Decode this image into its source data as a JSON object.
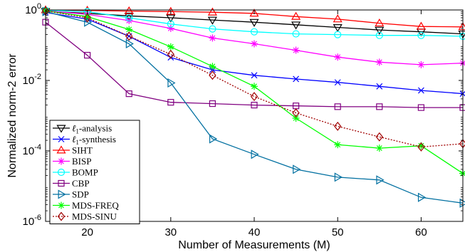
{
  "chart_data": {
    "type": "line",
    "xlabel": "Number of Measurements (M)",
    "ylabel": "Normalized norm-2 error",
    "xlim": [
      15,
      65
    ],
    "ylim": [
      1e-06,
      1
    ],
    "yscale": "log",
    "xticks": [
      20,
      30,
      40,
      50,
      60
    ],
    "xtick_labels": [
      "20",
      "30",
      "40",
      "50",
      "60"
    ],
    "yticks": [
      1e-06,
      0.0001,
      0.01,
      1
    ],
    "ytick_labels": [
      {
        "base": "10",
        "exp": "-6"
      },
      {
        "base": "10",
        "exp": "-4"
      },
      {
        "base": "10",
        "exp": "-2"
      },
      {
        "base": "10",
        "exp": "0"
      }
    ],
    "grid": false,
    "legend_position": "lower-left",
    "x": [
      15,
      20,
      25,
      30,
      35,
      40,
      45,
      50,
      55,
      60,
      65
    ],
    "series": [
      {
        "name_prefix": "ℓ",
        "name_sub": "1",
        "name_suffix": "-analysis",
        "color": "#000000",
        "marker": "triangle-down",
        "dash": "solid",
        "values": [
          0.92,
          0.8,
          0.68,
          0.6,
          0.52,
          0.45,
          0.38,
          0.32,
          0.27,
          0.24,
          0.21
        ]
      },
      {
        "name_prefix": "ℓ",
        "name_sub": "1",
        "name_suffix": "-synthesis",
        "color": "#0000ff",
        "marker": "x",
        "dash": "solid",
        "values": [
          0.85,
          0.55,
          0.18,
          0.045,
          0.02,
          0.014,
          0.011,
          0.0088,
          0.0068,
          0.0052,
          0.0042
        ]
      },
      {
        "name": "SIHT",
        "color": "#ff0000",
        "marker": "triangle-up",
        "dash": "solid",
        "values": [
          1.0,
          0.97,
          0.93,
          0.9,
          0.86,
          0.8,
          0.65,
          0.55,
          0.42,
          0.34,
          0.33
        ]
      },
      {
        "name": "BISP",
        "color": "#ff00ff",
        "marker": "star",
        "dash": "solid",
        "values": [
          0.95,
          0.75,
          0.5,
          0.3,
          0.16,
          0.11,
          0.072,
          0.046,
          0.033,
          0.028,
          0.031
        ]
      },
      {
        "name": "BOMP",
        "color": "#00ffff",
        "marker": "circle",
        "dash": "solid",
        "values": [
          0.98,
          0.9,
          0.6,
          0.4,
          0.29,
          0.24,
          0.21,
          0.2,
          0.19,
          0.19,
          0.18
        ]
      },
      {
        "name": "CBP",
        "color": "#800080",
        "marker": "square",
        "dash": "solid",
        "values": [
          0.45,
          0.052,
          0.0042,
          0.0024,
          0.0022,
          0.002,
          0.0019,
          0.0018,
          0.0018,
          0.0017,
          0.0017
        ]
      },
      {
        "name": "SDP",
        "color": "#006fa0",
        "marker": "triangle-right",
        "dash": "solid",
        "values": [
          0.9,
          0.45,
          0.11,
          0.0085,
          0.00022,
          8e-05,
          3e-05,
          1.8e-05,
          1.5e-05,
          4.8e-06,
          3.3e-06
        ]
      },
      {
        "name": "MDS-FREQ",
        "color": "#00ff00",
        "marker": "star",
        "dash": "solid",
        "values": [
          0.95,
          0.65,
          0.28,
          0.09,
          0.025,
          0.0068,
          0.00085,
          0.00015,
          0.00012,
          0.00014,
          2.3e-05
        ]
      },
      {
        "name": "MDS-SINU",
        "color": "#a00000",
        "marker": "diamond",
        "dash": "dotted",
        "values": [
          0.95,
          0.6,
          0.18,
          0.055,
          0.014,
          0.0035,
          0.0012,
          0.0005,
          0.00025,
          0.00013,
          0.00016
        ]
      }
    ]
  }
}
